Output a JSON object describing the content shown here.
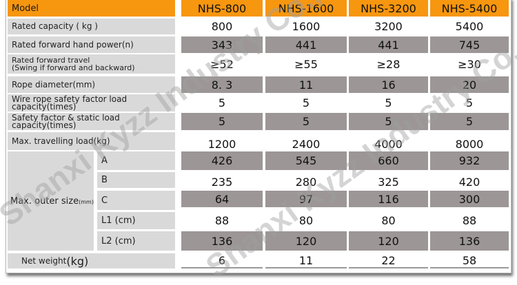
{
  "header": {
    "label": "Model",
    "models": [
      "NHS-800",
      "NHS-1600",
      "NHS-3200",
      "NHS-5400"
    ]
  },
  "rows": [
    {
      "label": "Rated capacity ( kg )",
      "values": [
        "800",
        "1600",
        "3200",
        "5400"
      ]
    },
    {
      "label": "Rated forward hand power(n)",
      "values": [
        "343",
        "441",
        "441",
        "745"
      ]
    },
    {
      "label": "Rated forward travel",
      "label2": "(Swing if forward and backward)",
      "values": [
        "≥52",
        "≥55",
        "≥28",
        "≥30"
      ]
    },
    {
      "label": "Rope diameter(mm)",
      "values": [
        "8. 3",
        "11",
        "16",
        "20"
      ]
    },
    {
      "label": "Wire rope safety factor load capacity(times)",
      "values": [
        "5",
        "5",
        "5",
        "5"
      ]
    },
    {
      "label": "Safety factor & static load capacity(times)",
      "values": [
        "5",
        "5",
        "5",
        "5"
      ]
    },
    {
      "label": "Max. travelling load(kg)",
      "values": [
        "1200",
        "2400",
        "4000",
        "8000"
      ]
    }
  ],
  "outer_size": {
    "label": "Max. outer size",
    "unit": "(mm)",
    "rows": [
      {
        "label": "A",
        "values": [
          "426",
          "545",
          "660",
          "932"
        ]
      },
      {
        "label": "B",
        "values": [
          "235",
          "280",
          "325",
          "420"
        ]
      },
      {
        "label": "C",
        "values": [
          "64",
          "97",
          "116",
          "300"
        ]
      },
      {
        "label": "L1 (cm)",
        "values": [
          "88",
          "80",
          "80",
          "88"
        ]
      },
      {
        "label": "L2 (cm)",
        "values": [
          "136",
          "120",
          "120",
          "136"
        ]
      }
    ]
  },
  "net_weight": {
    "label": "Net weight",
    "unit": "(kg)",
    "values": [
      "6",
      "11",
      "22",
      "58"
    ]
  },
  "watermark": "Shanxi Kyzz Industry Co., Ltd",
  "colors": {
    "header": "#f7960f",
    "label_bg": "#d9d9d9",
    "shaded_value": "#9c9696"
  }
}
